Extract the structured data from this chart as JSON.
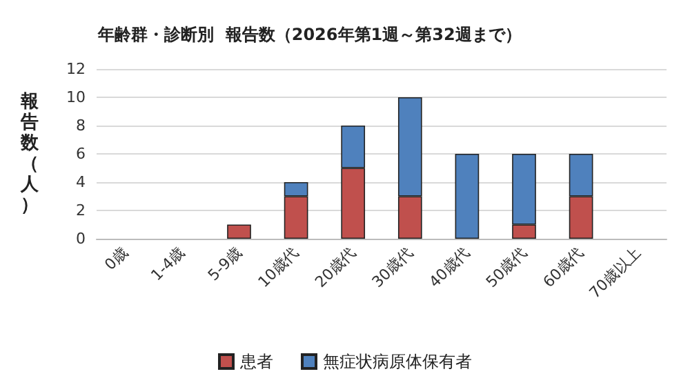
{
  "chart_data": {
    "type": "bar",
    "title": "年齢群・診断別  報告数（2026年第1週～第32週まで）",
    "ylabel": "報告数（人）",
    "categories": [
      "0歳",
      "1-4歳",
      "5-9歳",
      "10歳代",
      "20歳代",
      "30歳代",
      "40歳代",
      "50歳代",
      "60歳代",
      "70歳以上"
    ],
    "series": [
      {
        "name": "患者",
        "color": "#c0504d",
        "values": [
          0,
          0,
          1,
          3,
          5,
          3,
          0,
          1,
          3,
          0
        ]
      },
      {
        "name": "無症状病原体保有者",
        "color": "#4f81bd",
        "values": [
          0,
          0,
          0,
          1,
          3,
          7,
          6,
          5,
          3,
          0
        ]
      }
    ],
    "stacked": true,
    "ylim": [
      0,
      12
    ],
    "yticks": [
      0,
      2,
      4,
      6,
      8,
      10,
      12
    ],
    "grid": "y",
    "legend": "bottom"
  }
}
